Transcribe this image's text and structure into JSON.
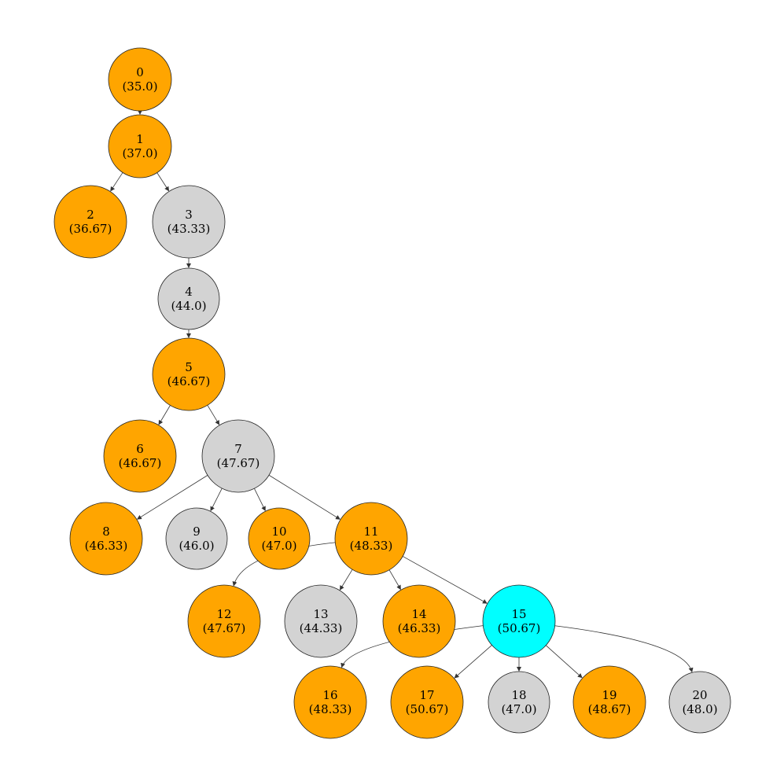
{
  "colors": {
    "orange": "#FFA500",
    "gray": "#D3D3D3",
    "cyan": "#00FFFF",
    "edge": "#333333"
  },
  "nodes": [
    {
      "id": "0",
      "value": "(35.0)",
      "color": "orange"
    },
    {
      "id": "1",
      "value": "(37.0)",
      "color": "orange"
    },
    {
      "id": "2",
      "value": "(36.67)",
      "color": "orange"
    },
    {
      "id": "3",
      "value": "(43.33)",
      "color": "gray"
    },
    {
      "id": "4",
      "value": "(44.0)",
      "color": "gray"
    },
    {
      "id": "5",
      "value": "(46.67)",
      "color": "orange"
    },
    {
      "id": "6",
      "value": "(46.67)",
      "color": "orange"
    },
    {
      "id": "7",
      "value": "(47.67)",
      "color": "gray"
    },
    {
      "id": "8",
      "value": "(46.33)",
      "color": "orange"
    },
    {
      "id": "9",
      "value": "(46.0)",
      "color": "gray"
    },
    {
      "id": "10",
      "value": "(47.0)",
      "color": "orange"
    },
    {
      "id": "11",
      "value": "(48.33)",
      "color": "orange"
    },
    {
      "id": "12",
      "value": "(47.67)",
      "color": "orange"
    },
    {
      "id": "13",
      "value": "(44.33)",
      "color": "gray"
    },
    {
      "id": "14",
      "value": "(46.33)",
      "color": "orange"
    },
    {
      "id": "15",
      "value": "(50.67)",
      "color": "cyan"
    },
    {
      "id": "16",
      "value": "(48.33)",
      "color": "orange"
    },
    {
      "id": "17",
      "value": "(50.67)",
      "color": "orange"
    },
    {
      "id": "18",
      "value": "(47.0)",
      "color": "gray"
    },
    {
      "id": "19",
      "value": "(48.67)",
      "color": "orange"
    },
    {
      "id": "20",
      "value": "(48.0)",
      "color": "gray"
    }
  ],
  "edges": [
    [
      "0",
      "1"
    ],
    [
      "1",
      "2"
    ],
    [
      "1",
      "3"
    ],
    [
      "3",
      "4"
    ],
    [
      "4",
      "5"
    ],
    [
      "5",
      "6"
    ],
    [
      "5",
      "7"
    ],
    [
      "7",
      "8"
    ],
    [
      "7",
      "9"
    ],
    [
      "7",
      "10"
    ],
    [
      "7",
      "11"
    ],
    [
      "11",
      "12"
    ],
    [
      "11",
      "13"
    ],
    [
      "11",
      "14"
    ],
    [
      "11",
      "15"
    ],
    [
      "15",
      "16"
    ],
    [
      "15",
      "17"
    ],
    [
      "15",
      "18"
    ],
    [
      "15",
      "19"
    ],
    [
      "15",
      "20"
    ]
  ]
}
